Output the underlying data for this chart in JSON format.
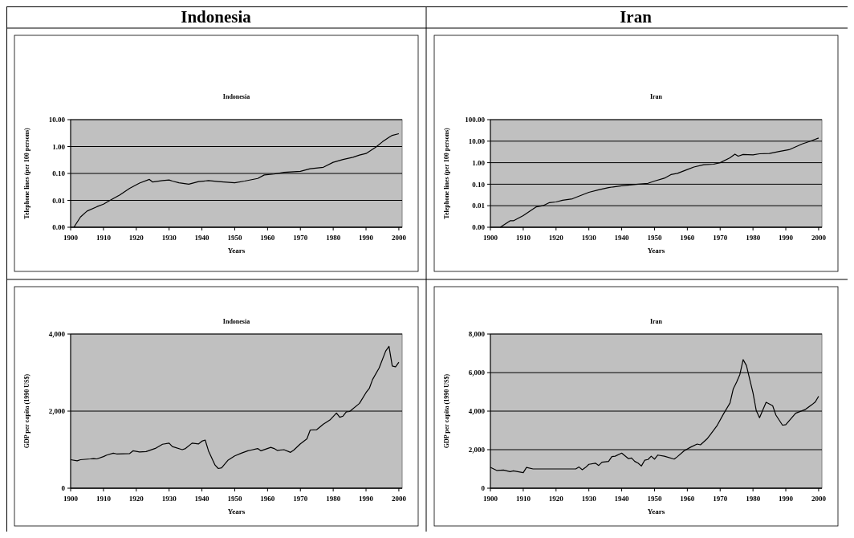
{
  "chart_data": [
    {
      "type": "line",
      "title": "Indonesia",
      "subtitle": "Indonesia",
      "xlabel": "Years",
      "ylabel": "Telephone lines (per 100 persons)",
      "log": true,
      "grid": "y",
      "xlim": [
        1900,
        2001
      ],
      "xticks": [
        1900,
        1910,
        1920,
        1930,
        1940,
        1950,
        1960,
        1970,
        1980,
        1990,
        2000
      ],
      "ylim": [
        0.001,
        10
      ],
      "yticks": [
        {
          "value": 0.001,
          "label": "0.00"
        },
        {
          "value": 0.01,
          "label": "0.01"
        },
        {
          "value": 0.1,
          "label": "0.10"
        },
        {
          "value": 1,
          "label": "1.00"
        },
        {
          "value": 10,
          "label": "10.00"
        }
      ],
      "series": [
        {
          "color": "#000000",
          "x": [
            1901,
            1903,
            1905,
            1908,
            1910,
            1912,
            1915,
            1918,
            1921,
            1924,
            1925,
            1928,
            1930,
            1931,
            1933,
            1936,
            1939,
            1942,
            1945,
            1950,
            1953,
            1957,
            1959,
            1962,
            1965,
            1970,
            1973,
            1977,
            1980,
            1983,
            1986,
            1988,
            1990,
            1993,
            1995,
            1997,
            1998,
            2000
          ],
          "values": [
            0.001,
            0.0024,
            0.004,
            0.0058,
            0.0072,
            0.01,
            0.016,
            0.028,
            0.044,
            0.06,
            0.048,
            0.054,
            0.057,
            0.052,
            0.045,
            0.04,
            0.05,
            0.054,
            0.05,
            0.045,
            0.052,
            0.065,
            0.088,
            0.095,
            0.11,
            0.12,
            0.15,
            0.17,
            0.26,
            0.33,
            0.4,
            0.48,
            0.55,
            0.95,
            1.5,
            2.2,
            2.6,
            3
          ]
        }
      ]
    },
    {
      "type": "line",
      "title": "Iran",
      "subtitle": "Iran",
      "xlabel": "Years",
      "ylabel": "Telephone lines (per 100 persons)",
      "log": true,
      "grid": "y",
      "xlim": [
        1900,
        2001
      ],
      "xticks": [
        1900,
        1910,
        1920,
        1930,
        1940,
        1950,
        1960,
        1970,
        1980,
        1990,
        2000
      ],
      "ylim": [
        0.001,
        100
      ],
      "yticks": [
        {
          "value": 0.001,
          "label": "0.00"
        },
        {
          "value": 0.01,
          "label": "0.01"
        },
        {
          "value": 0.1,
          "label": "0.10"
        },
        {
          "value": 1,
          "label": "1.00"
        },
        {
          "value": 10,
          "label": "10.00"
        },
        {
          "value": 100,
          "label": "100.00"
        }
      ],
      "series": [
        {
          "color": "#000000",
          "x": [
            1903,
            1906,
            1907,
            1910,
            1912,
            1914,
            1916,
            1918,
            1920,
            1922,
            1925,
            1927,
            1930,
            1933,
            1936,
            1940,
            1945,
            1948,
            1950,
            1953,
            1955,
            1957,
            1960,
            1962,
            1965,
            1968,
            1970,
            1973,
            1974.5,
            1975.5,
            1977,
            1980,
            1982,
            1985,
            1988,
            1991,
            1995,
            1997,
            2000
          ],
          "values": [
            0.001,
            0.002,
            0.002,
            0.0035,
            0.0056,
            0.0089,
            0.01,
            0.014,
            0.015,
            0.018,
            0.021,
            0.028,
            0.042,
            0.055,
            0.07,
            0.085,
            0.1,
            0.11,
            0.14,
            0.19,
            0.28,
            0.32,
            0.48,
            0.63,
            0.81,
            0.85,
            1,
            1.7,
            2.5,
            2,
            2.4,
            2.3,
            2.6,
            2.7,
            3.3,
            4,
            7.4,
            9.4,
            14
          ]
        }
      ]
    },
    {
      "type": "line",
      "title": "Indonesia",
      "xlabel": "Years",
      "ylabel": "GDP per capita (1990 US$)",
      "grid": "y",
      "xlim": [
        1900,
        2001
      ],
      "xticks": [
        1900,
        1910,
        1920,
        1930,
        1940,
        1950,
        1960,
        1970,
        1980,
        1990,
        2000
      ],
      "ylim": [
        0,
        4000
      ],
      "yticks": [
        {
          "value": 0,
          "label": "0"
        },
        {
          "value": 2000,
          "label": "2,000"
        },
        {
          "value": 4000,
          "label": "4,000"
        }
      ],
      "series": [
        {
          "color": "#000000",
          "x": [
            1900,
            1902,
            1903,
            1906,
            1907,
            1908,
            1910,
            1911,
            1913,
            1914,
            1918,
            1919,
            1921,
            1923,
            1926,
            1928,
            1930,
            1931,
            1934,
            1935,
            1937,
            1939,
            1940,
            1941,
            1942,
            1944,
            1945,
            1946,
            1948,
            1950,
            1952,
            1954,
            1955,
            1957,
            1958,
            1961,
            1962,
            1963,
            1965,
            1967,
            1968,
            1970,
            1972,
            1973,
            1975,
            1977,
            1979,
            1981,
            1982,
            1983,
            1984,
            1985,
            1988,
            1990,
            1991,
            1992,
            1994,
            1996,
            1997,
            1998,
            1999,
            2000
          ],
          "values": [
            740,
            710,
            740,
            760,
            770,
            760,
            820,
            860,
            910,
            890,
            900,
            970,
            940,
            950,
            1040,
            1140,
            1170,
            1080,
            1000,
            1030,
            1170,
            1150,
            1220,
            1250,
            970,
            600,
            510,
            530,
            730,
            840,
            910,
            970,
            990,
            1030,
            970,
            1060,
            1030,
            980,
            1000,
            930,
            990,
            1150,
            1280,
            1510,
            1520,
            1660,
            1770,
            1950,
            1840,
            1870,
            1980,
            1990,
            2200,
            2480,
            2590,
            2820,
            3120,
            3560,
            3680,
            3170,
            3150,
            3270
          ]
        }
      ]
    },
    {
      "type": "line",
      "title": "Iran",
      "xlabel": "Years",
      "ylabel": "GDP per capita (1990 US$)",
      "grid": "y",
      "xlim": [
        1900,
        2001
      ],
      "xticks": [
        1900,
        1910,
        1920,
        1930,
        1940,
        1950,
        1960,
        1970,
        1980,
        1990,
        2000
      ],
      "ylim": [
        0,
        8000
      ],
      "yticks": [
        {
          "value": 0,
          "label": "0"
        },
        {
          "value": 2000,
          "label": "2,000"
        },
        {
          "value": 4000,
          "label": "4,000"
        },
        {
          "value": 6000,
          "label": "6,000"
        },
        {
          "value": 8000,
          "label": "8,000"
        }
      ],
      "series": [
        {
          "color": "#000000",
          "x": [
            1900,
            1902,
            1904,
            1906,
            1907,
            1910,
            1911,
            1913,
            1926,
            1927,
            1928,
            1929,
            1930,
            1932,
            1933,
            1934,
            1936,
            1937,
            1938,
            1940,
            1942,
            1943,
            1944,
            1945,
            1946,
            1947,
            1948,
            1949,
            1950,
            1951,
            1953,
            1956,
            1957,
            1959,
            1961,
            1963,
            1964,
            1966,
            1967,
            1969,
            1971,
            1973,
            1974,
            1975,
            1976,
            1977,
            1978,
            1980,
            1981,
            1982,
            1984,
            1986,
            1987,
            1989,
            1990,
            1992,
            1993,
            1996,
            1998,
            1999,
            2000
          ],
          "values": [
            1080,
            920,
            940,
            860,
            900,
            810,
            1080,
            1000,
            1000,
            1100,
            960,
            1080,
            1240,
            1300,
            1180,
            1350,
            1390,
            1640,
            1660,
            1820,
            1540,
            1570,
            1390,
            1300,
            1150,
            1450,
            1490,
            1660,
            1510,
            1720,
            1660,
            1510,
            1640,
            1940,
            2130,
            2290,
            2250,
            2560,
            2780,
            3230,
            3850,
            4420,
            5160,
            5500,
            5900,
            6670,
            6370,
            4950,
            4030,
            3660,
            4460,
            4280,
            3790,
            3270,
            3300,
            3690,
            3890,
            4090,
            4340,
            4480,
            4770
          ]
        }
      ]
    }
  ]
}
